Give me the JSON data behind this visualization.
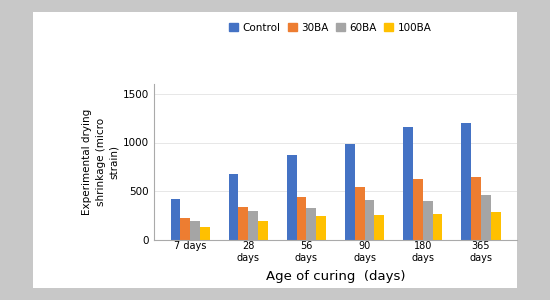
{
  "categories": [
    "7 days",
    "28\ndays",
    "56\ndays",
    "90\ndays",
    "180\ndays",
    "365\ndays"
  ],
  "series": {
    "Control": [
      420,
      680,
      870,
      980,
      1160,
      1200
    ],
    "30BA": [
      230,
      340,
      440,
      540,
      630,
      650
    ],
    "60BA": [
      190,
      300,
      330,
      410,
      400,
      460
    ],
    "100BA": [
      130,
      190,
      250,
      260,
      270,
      290
    ]
  },
  "colors": {
    "Control": "#4472C4",
    "30BA": "#ED7D31",
    "60BA": "#A5A5A5",
    "100BA": "#FFC000"
  },
  "ylabel": "Experimental drying\nshrinkage (micro\nstrain)",
  "xlabel": "Age of curing  (days)",
  "ylim": [
    0,
    1600
  ],
  "yticks": [
    0,
    500,
    1000,
    1500
  ],
  "legend_labels": [
    "Control",
    "30BA",
    "60BA",
    "100BA"
  ],
  "plot_bg": "#FFFFFF",
  "outer_bg": "#C8C8C8",
  "inner_bg": "#FFFFFF"
}
